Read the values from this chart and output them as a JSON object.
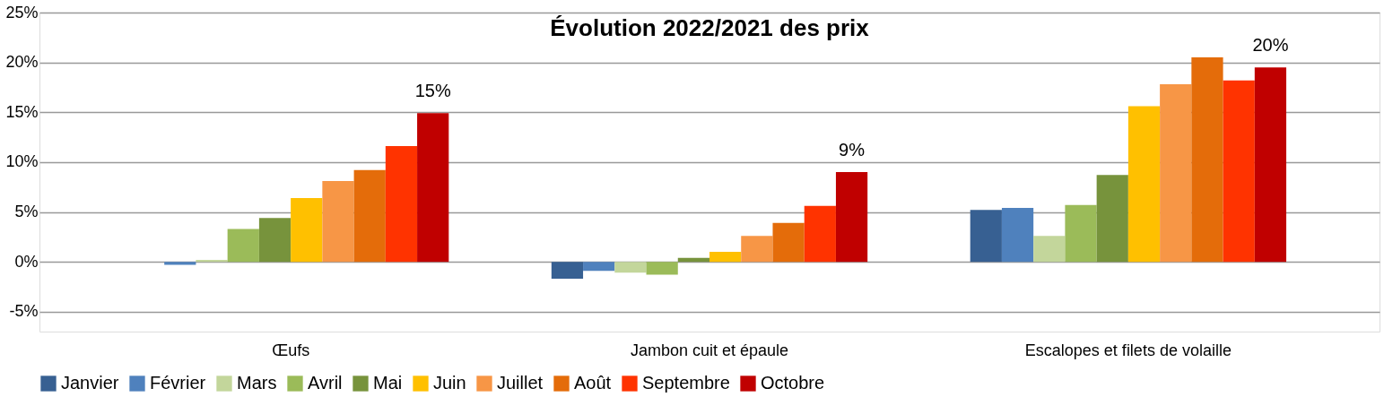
{
  "chart_data": {
    "type": "bar",
    "title": "Évolution 2022/2021 des prix",
    "categories": [
      "Œufs",
      "Jambon cuit et épaule",
      "Escalopes et filets de volaille"
    ],
    "series": [
      {
        "name": "Janvier",
        "color": "#376092",
        "values": [
          0,
          -1.7,
          5.2
        ]
      },
      {
        "name": "Février",
        "color": "#4f81bd",
        "values": [
          -0.3,
          -0.9,
          5.4
        ]
      },
      {
        "name": "Mars",
        "color": "#c3d69b",
        "values": [
          0.2,
          -1.1,
          2.6
        ]
      },
      {
        "name": "Avril",
        "color": "#9bbb59",
        "values": [
          3.3,
          -1.3,
          5.7
        ]
      },
      {
        "name": "Mai",
        "color": "#77933c",
        "values": [
          4.4,
          0.4,
          8.7
        ]
      },
      {
        "name": "Juin",
        "color": "#ffc000",
        "values": [
          6.4,
          1.0,
          15.6
        ]
      },
      {
        "name": "Juillet",
        "color": "#f79646",
        "values": [
          8.1,
          2.6,
          17.8
        ]
      },
      {
        "name": "Août",
        "color": "#e46c0a",
        "values": [
          9.2,
          3.9,
          20.5
        ]
      },
      {
        "name": "Septembre",
        "color": "#ff3300",
        "values": [
          11.6,
          5.6,
          18.2
        ]
      },
      {
        "name": "Octobre",
        "color": "#c00000",
        "values": [
          14.9,
          9.0,
          19.5
        ],
        "value_labels": [
          "15%",
          "9%",
          "20%"
        ]
      }
    ],
    "ylim": [
      -7,
      25
    ],
    "yticks": [
      {
        "value": -5,
        "label": "-5%"
      },
      {
        "value": 0,
        "label": "0%"
      },
      {
        "value": 5,
        "label": "5%"
      },
      {
        "value": 10,
        "label": "10%"
      },
      {
        "value": 15,
        "label": "15%"
      },
      {
        "value": 20,
        "label": "20%"
      },
      {
        "value": 25,
        "label": "25%"
      }
    ],
    "grid": "y",
    "legend": "bottom"
  }
}
